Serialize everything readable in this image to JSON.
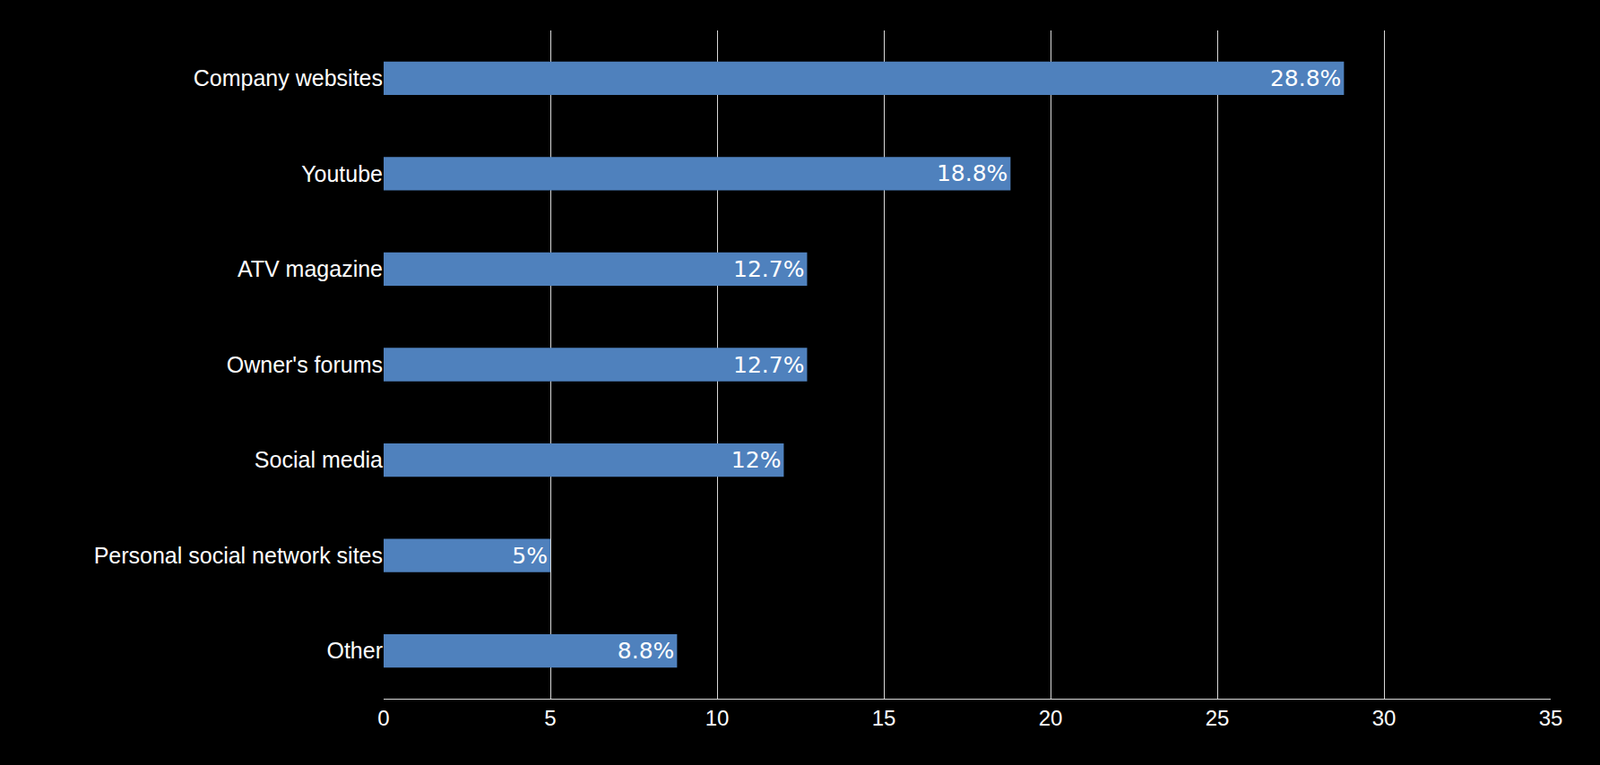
{
  "chart_data": {
    "type": "bar",
    "orientation": "horizontal",
    "categories": [
      "Company websites",
      "Youtube",
      "ATV magazine",
      "Owner's forums",
      "Social media",
      "Personal social network sites",
      "Other"
    ],
    "values": [
      28.8,
      18.8,
      12.7,
      12.7,
      12,
      5,
      8.8
    ],
    "value_labels": [
      "28.8%",
      "18.8%",
      "12.7%",
      "12.7%",
      "12%",
      "5%",
      "8.8%"
    ],
    "color": "#4f81bd",
    "xlim": [
      0,
      35
    ],
    "xticks": [
      0,
      5,
      10,
      15,
      20,
      25,
      30,
      35
    ],
    "grid": true,
    "data_labels": true
  }
}
